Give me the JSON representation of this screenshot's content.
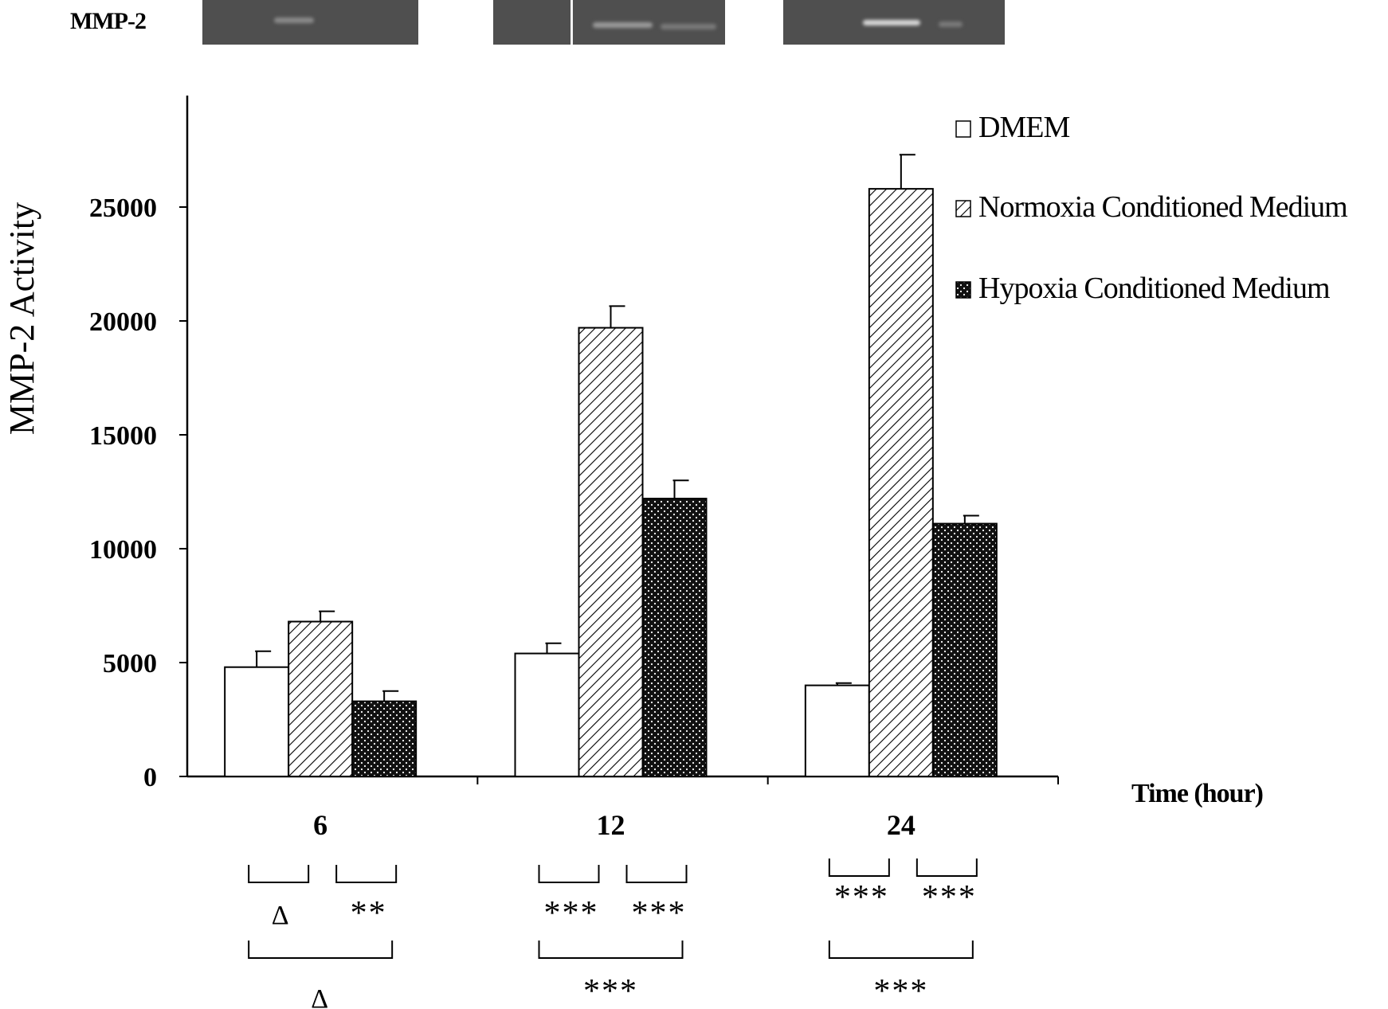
{
  "blot": {
    "label": "MMP-2"
  },
  "chart_data": {
    "type": "bar",
    "title": "",
    "ylabel": "MMP-2 Activity",
    "xlabel": "Time (hour)",
    "categories": [
      "6",
      "12",
      "24"
    ],
    "ylim": [
      0,
      30000
    ],
    "yticks": [
      0,
      5000,
      10000,
      15000,
      20000,
      25000
    ],
    "grid": false,
    "legend_position": "top-right",
    "series": [
      {
        "name": "DMEM",
        "pattern": "open",
        "values": [
          4800,
          5400,
          4000
        ],
        "errors": [
          700,
          450,
          100
        ]
      },
      {
        "name": "Normoxia Conditioned Medium",
        "pattern": "hatched",
        "values": [
          6800,
          19700,
          25800
        ],
        "errors": [
          450,
          950,
          1500
        ]
      },
      {
        "name": "Hypoxia Conditioned Medium",
        "pattern": "dotted",
        "values": [
          3300,
          12200,
          11100
        ],
        "errors": [
          450,
          800,
          350
        ]
      }
    ],
    "significance": [
      {
        "group": "6",
        "pairs": [
          {
            "from": "DMEM",
            "to": "Normoxia Conditioned Medium",
            "mark": "Δ"
          },
          {
            "from": "Normoxia Conditioned Medium",
            "to": "Hypoxia Conditioned Medium",
            "mark": "**"
          },
          {
            "from": "DMEM",
            "to": "Hypoxia Conditioned Medium",
            "mark": "Δ"
          }
        ]
      },
      {
        "group": "12",
        "pairs": [
          {
            "from": "DMEM",
            "to": "Normoxia Conditioned Medium",
            "mark": "***"
          },
          {
            "from": "Normoxia Conditioned Medium",
            "to": "Hypoxia Conditioned Medium",
            "mark": "***"
          },
          {
            "from": "DMEM",
            "to": "Hypoxia Conditioned Medium",
            "mark": "***"
          }
        ]
      },
      {
        "group": "24",
        "pairs": [
          {
            "from": "DMEM",
            "to": "Normoxia Conditioned Medium",
            "mark": "***"
          },
          {
            "from": "Normoxia Conditioned Medium",
            "to": "Hypoxia Conditioned Medium",
            "mark": "***"
          },
          {
            "from": "DMEM",
            "to": "Hypoxia Conditioned Medium",
            "mark": "***"
          }
        ]
      }
    ]
  },
  "colors": {
    "blot_background": "#4f4f4f",
    "blot_band": "#d8d8d8",
    "axis": "#000000",
    "bar_fill_open": "#ffffff",
    "bar_fill_hypoxia": "#111111"
  }
}
